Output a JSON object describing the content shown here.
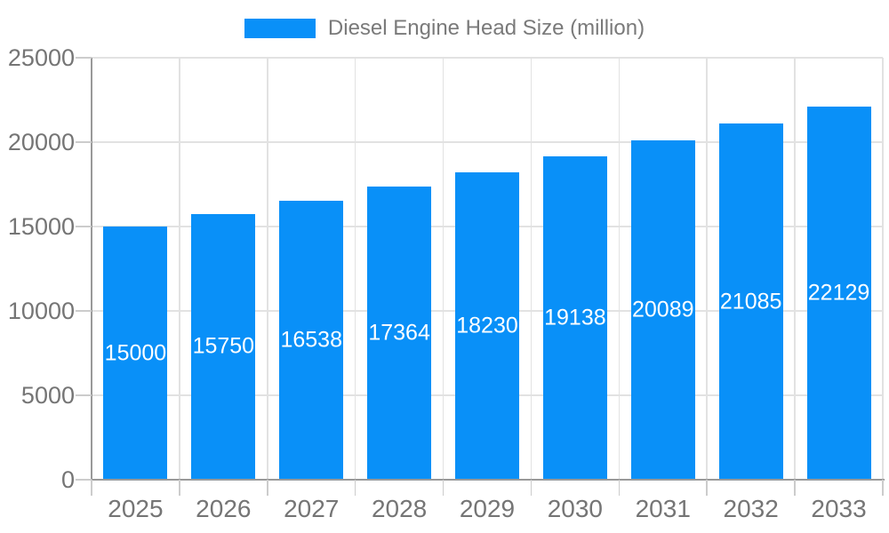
{
  "legend": {
    "label": "Diesel Engine Head Size (million)"
  },
  "chart_data": {
    "type": "bar",
    "title": "Diesel Engine Head Size (million)",
    "categories": [
      "2025",
      "2026",
      "2027",
      "2028",
      "2029",
      "2030",
      "2031",
      "2032",
      "2033"
    ],
    "values": [
      15000,
      15750,
      16538,
      17364,
      18230,
      19138,
      20089,
      21085,
      22129
    ],
    "xlabel": "",
    "ylabel": "",
    "ylim": [
      0,
      25000
    ],
    "yticks": [
      0,
      5000,
      10000,
      15000,
      20000,
      25000
    ],
    "grid": true,
    "legend_position": "top-center",
    "value_labels": "inside-center"
  },
  "colors": {
    "bar": "#0990f8",
    "grid": "#e2e2e2",
    "axis": "#999999",
    "tick": "#cccccc",
    "axis_label": "#757575",
    "legend_text": "#7a7a7a",
    "bar_label": "#ffffff",
    "background": "#ffffff"
  }
}
